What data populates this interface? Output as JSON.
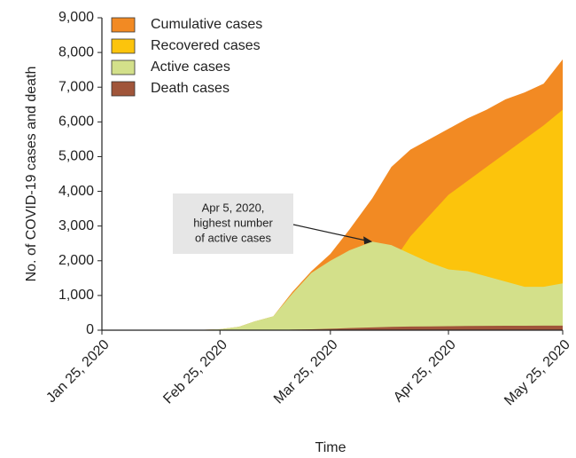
{
  "chart_data": {
    "type": "area",
    "xlabel": "Time",
    "ylabel": "No. of COVID-19 cases and death",
    "x": [
      "2020-01-25",
      "2020-02-05",
      "2020-02-15",
      "2020-02-20",
      "2020-02-25",
      "2020-03-01",
      "2020-03-05",
      "2020-03-10",
      "2020-03-15",
      "2020-03-20",
      "2020-03-25",
      "2020-03-30",
      "2020-04-05",
      "2020-04-10",
      "2020-04-15",
      "2020-04-20",
      "2020-04-25",
      "2020-04-30",
      "2020-05-05",
      "2020-05-10",
      "2020-05-15",
      "2020-05-20",
      "2020-05-25"
    ],
    "series": [
      {
        "name": "Cumulative cases",
        "color": "#f28a23",
        "values": [
          0,
          0,
          5,
          10,
          30,
          100,
          250,
          400,
          1100,
          1700,
          2200,
          2900,
          3800,
          4700,
          5200,
          5500,
          5800,
          6100,
          6350,
          6650,
          6850,
          7100,
          7800
        ]
      },
      {
        "name": "Recovered cases",
        "color": "#fcc40c",
        "values": [
          0,
          0,
          0,
          0,
          0,
          0,
          0,
          0,
          20,
          50,
          150,
          500,
          1100,
          1900,
          2700,
          3300,
          3900,
          4300,
          4700,
          5100,
          5500,
          5900,
          6350
        ]
      },
      {
        "name": "Active cases",
        "color": "#d3e08a",
        "values": [
          0,
          0,
          5,
          10,
          30,
          100,
          250,
          400,
          1050,
          1650,
          2000,
          2300,
          2550,
          2450,
          2200,
          1950,
          1750,
          1700,
          1550,
          1400,
          1250,
          1250,
          1350
        ]
      },
      {
        "name": "Death cases",
        "color": "#a0553a",
        "values": [
          0,
          0,
          0,
          0,
          0,
          0,
          0,
          0,
          15,
          25,
          40,
          60,
          80,
          95,
          105,
          110,
          115,
          120,
          125,
          127,
          128,
          130,
          130
        ]
      }
    ],
    "xlim": [
      "2020-01-25",
      "2020-05-25"
    ],
    "xticks": [
      {
        "value": "2020-01-25",
        "label": "Jan 25, 2020"
      },
      {
        "value": "2020-02-25",
        "label": "Feb 25, 2020"
      },
      {
        "value": "2020-03-25",
        "label": "Mar 25, 2020"
      },
      {
        "value": "2020-04-25",
        "label": "Apr 25, 2020"
      },
      {
        "value": "2020-05-25",
        "label": "May 25, 2020"
      }
    ],
    "ylim": [
      0,
      9000
    ],
    "yticks": [
      0,
      {
        "value": 1000,
        "label": "1,000"
      },
      {
        "value": 2000,
        "label": "2,000"
      },
      {
        "value": 3000,
        "label": "3,000"
      },
      {
        "value": 4000,
        "label": "4,000"
      },
      {
        "value": 5000,
        "label": "5,000"
      },
      {
        "value": 6000,
        "label": "6,000"
      },
      {
        "value": 7000,
        "label": "7,000"
      },
      {
        "value": 8000,
        "label": "8,000"
      },
      {
        "value": 9000,
        "label": "9,000"
      }
    ],
    "legend": "upper left",
    "annotation": {
      "lines": [
        "Apr 5, 2020,",
        "highest number",
        "of active cases"
      ],
      "x": "2020-04-05",
      "y": 2550
    }
  }
}
